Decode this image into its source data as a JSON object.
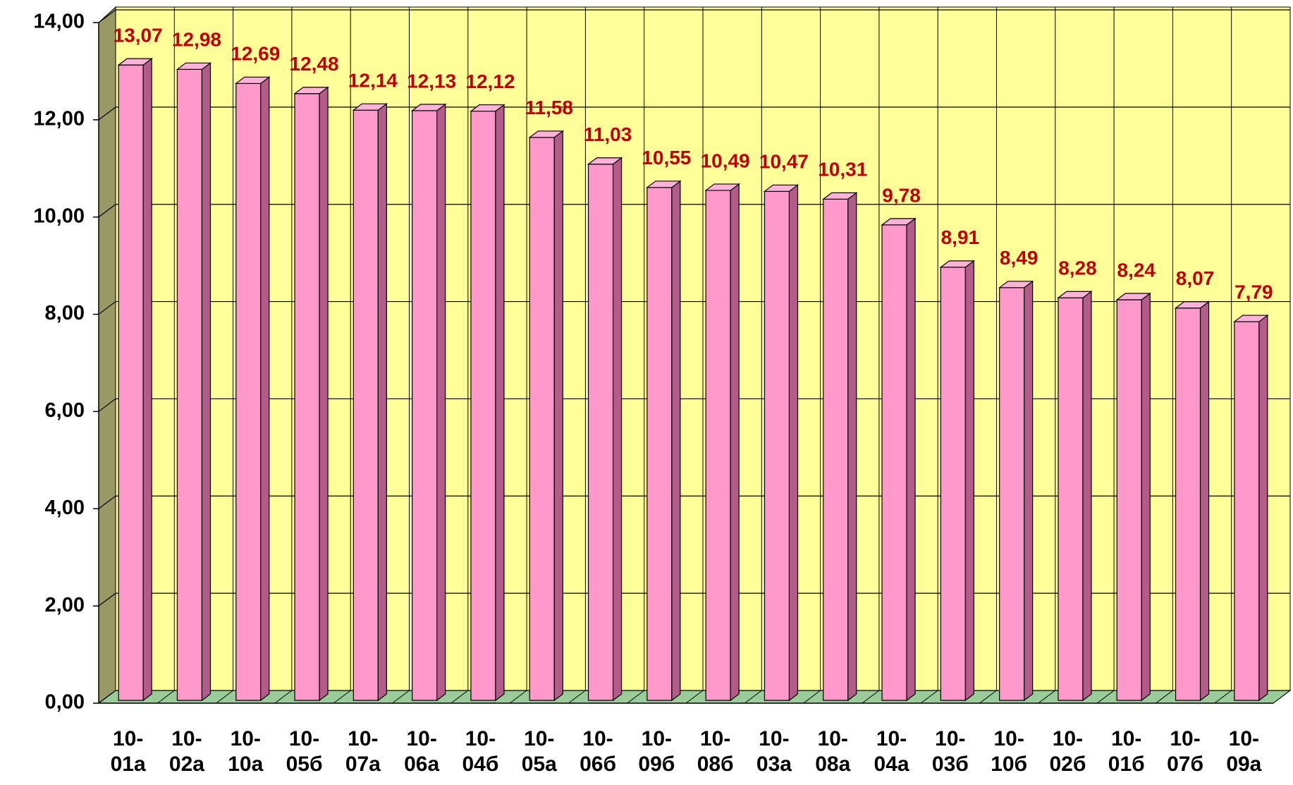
{
  "chart_data": {
    "type": "bar3d",
    "categories": [
      "10-01а",
      "10-02а",
      "10-10а",
      "10-05б",
      "10-07а",
      "10-06а",
      "10-04б",
      "10-05а",
      "10-06б",
      "10-09б",
      "10-08б",
      "10-03а",
      "10-08а",
      "10-04а",
      "10-03б",
      "10-10б",
      "10-02б",
      "10-01б",
      "10-07б",
      "10-09а"
    ],
    "values": [
      13.07,
      12.98,
      12.69,
      12.48,
      12.14,
      12.13,
      12.12,
      11.58,
      11.03,
      10.55,
      10.49,
      10.47,
      10.31,
      9.78,
      8.91,
      8.49,
      8.28,
      8.24,
      8.07,
      7.79
    ],
    "value_labels": [
      "13,07",
      "12,98",
      "12,69",
      "12,48",
      "12,14",
      "12,13",
      "12,12",
      "11,58",
      "11,03",
      "10,55",
      "10,49",
      "10,47",
      "10,31",
      "9,78",
      "8,91",
      "8,49",
      "8,28",
      "8,24",
      "8,07",
      "7,79"
    ],
    "color": "#ff99cc",
    "ylim": [
      0,
      14
    ],
    "yticks": [
      {
        "value": 0,
        "label": "0,00"
      },
      {
        "value": 2,
        "label": "2,00"
      },
      {
        "value": 4,
        "label": "4,00"
      },
      {
        "value": 6,
        "label": "6,00"
      },
      {
        "value": 8,
        "label": "8,00"
      },
      {
        "value": 10,
        "label": "10,00"
      },
      {
        "value": 12,
        "label": "12,00"
      },
      {
        "value": 14,
        "label": "14,00"
      }
    ],
    "grid": true
  }
}
